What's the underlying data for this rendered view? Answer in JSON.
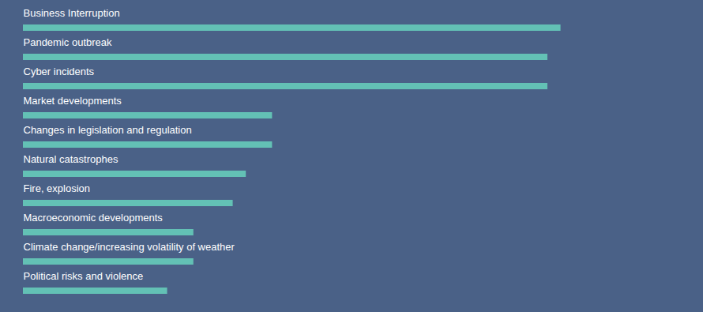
{
  "chart_data": {
    "type": "bar",
    "orientation": "horizontal",
    "categories": [
      "Business Interruption",
      "Pandemic outbreak",
      "Cyber incidents",
      "Market developments",
      "Changes in legislation and regulation",
      "Natural catastrophes",
      "Fire, explosion",
      "Macroeconomic developments",
      "Climate change/increasing volatility of weather",
      "Political risks and violence"
    ],
    "values": [
      41,
      40,
      40,
      19,
      19,
      17,
      16,
      13,
      13,
      11
    ],
    "color": "#63c1b5",
    "xlim": [
      0,
      50
    ],
    "tick_labels": false,
    "grid": false,
    "data_labels": false
  }
}
